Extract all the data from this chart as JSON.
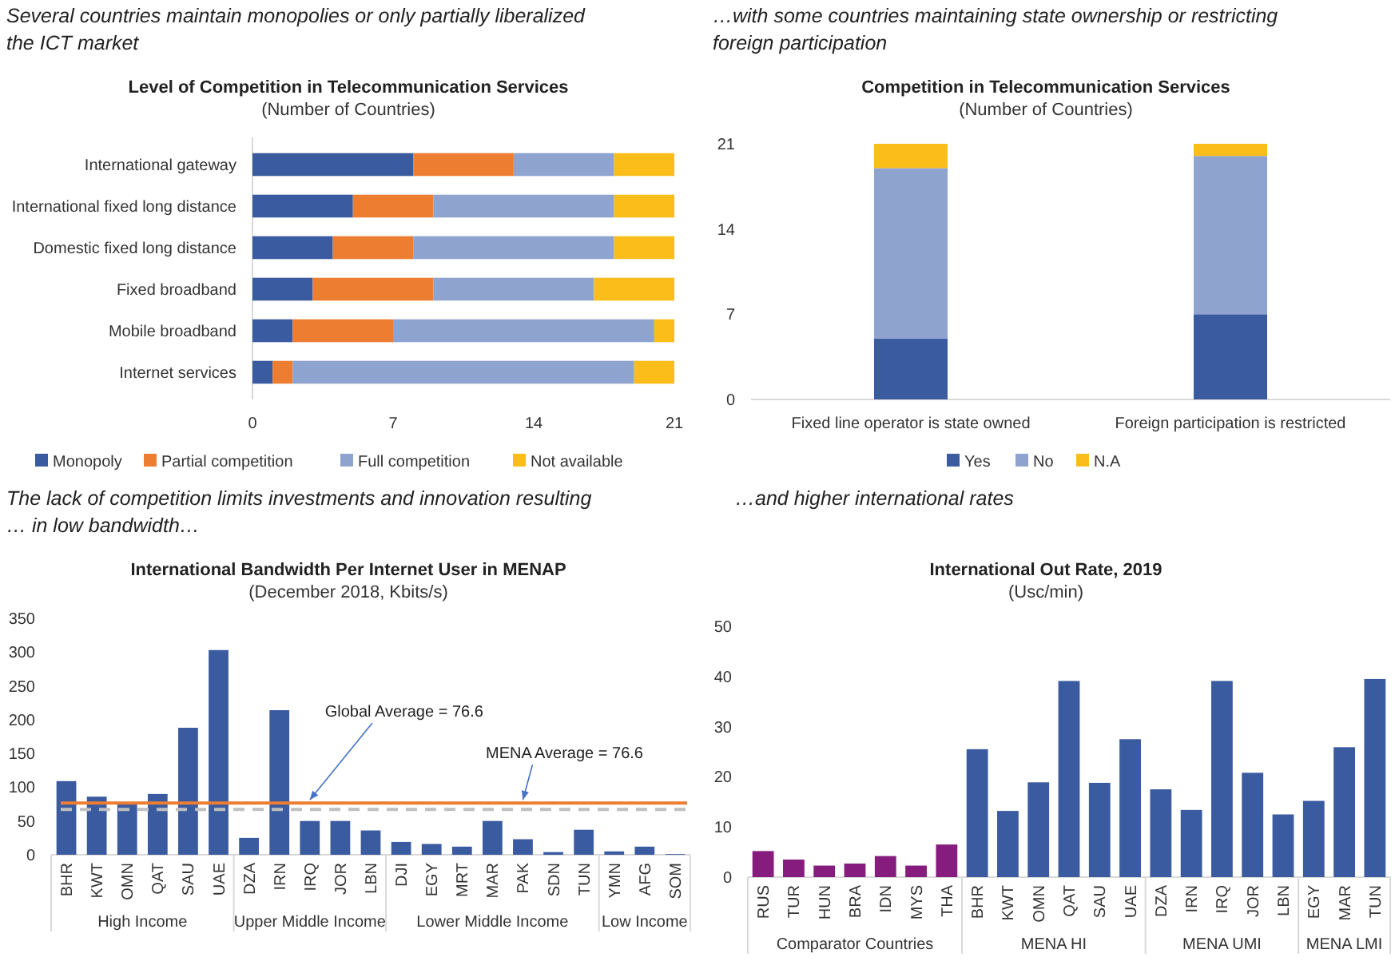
{
  "chart_data": [
    {
      "type": "bar",
      "orientation": "horizontal",
      "stacked": true,
      "title": "Level of Competition in Telecommunication Services",
      "subtitle": "(Number of Countries)",
      "annotations": [
        "Several countries maintain monopolies or only partially liberalized the ICT market"
      ],
      "categories": [
        "International gateway",
        "International fixed long distance",
        "Domestic fixed long distance",
        "Fixed broadband",
        "Mobile broadband",
        "Internet services"
      ],
      "series": [
        {
          "name": "Monopoly",
          "color": "#3a5ba0",
          "values": [
            8,
            5,
            4,
            3,
            2,
            1
          ]
        },
        {
          "name": "Partial competition",
          "color": "#ed7d31",
          "values": [
            5,
            4,
            4,
            6,
            5,
            1
          ]
        },
        {
          "name": "Full competition",
          "color": "#8fa3cf",
          "values": [
            5,
            9,
            10,
            8,
            13,
            17
          ]
        },
        {
          "name": "Not available",
          "color": "#fbbd19",
          "values": [
            3,
            3,
            3,
            4,
            1,
            2
          ]
        }
      ],
      "xlim": [
        0,
        21
      ],
      "xticks": [
        0,
        7,
        14,
        21
      ],
      "grid": false,
      "legend": "bottom"
    },
    {
      "type": "bar",
      "stacked": true,
      "title": "Competition in Telecommunication Services",
      "subtitle": "(Number of Countries)",
      "annotations": [
        "…with some countries maintaining state ownership or restricting foreign participation"
      ],
      "categories": [
        "Fixed line operator is state owned",
        "Foreign participation is restricted"
      ],
      "series": [
        {
          "name": "Yes",
          "color": "#3a5ba0",
          "values": [
            5,
            7
          ]
        },
        {
          "name": "No",
          "color": "#8fa3cf",
          "values": [
            14,
            13
          ]
        },
        {
          "name": "N.A",
          "color": "#fbbd19",
          "values": [
            2,
            1
          ]
        }
      ],
      "ylim": [
        0,
        21
      ],
      "yticks": [
        0,
        7,
        14,
        21
      ],
      "grid": false,
      "legend": "bottom"
    },
    {
      "type": "bar",
      "title": "International Bandwidth Per Internet User in MENAP",
      "subtitle": "(December 2018, Kbits/s)",
      "annotations": [
        "The lack of competition limits investments and innovation resulting … in low bandwidth…",
        {
          "text": "Global Average = 76.6",
          "x": "IRQ",
          "y": 76.6
        },
        {
          "text": "MENA Average = 76.6",
          "x": "PAK",
          "y": 76.6
        },
        "High Income",
        "Upper Middle Income",
        "Lower Middle Income",
        "Low Income"
      ],
      "categories": [
        "BHR",
        "KWT",
        "OMN",
        "QAT",
        "SAU",
        "UAE",
        "DZA",
        "IRN",
        "IRQ",
        "JOR",
        "LBN",
        "DJI",
        "EGY",
        "MRT",
        "MAR",
        "PAK",
        "SDN",
        "TUN",
        "YMN",
        "AFG",
        "SOM"
      ],
      "values": [
        109,
        86,
        76,
        90,
        188,
        303,
        25,
        214,
        50,
        50,
        36,
        19,
        16,
        12,
        50,
        23,
        4,
        37,
        5,
        12,
        1
      ],
      "color": "#3a5ba0",
      "ref_lines": [
        {
          "axis": "y",
          "value": 76.6,
          "color": "#ed7d31",
          "line_style": "solid"
        },
        {
          "axis": "y",
          "value": 67,
          "color": "#bfbfbf",
          "line_style": "dashed"
        }
      ],
      "ylim": [
        0,
        350
      ],
      "yticks": [
        0,
        50,
        100,
        150,
        200,
        250,
        300,
        350
      ],
      "grid": false,
      "legend": false
    },
    {
      "type": "bar",
      "title": "International Out Rate, 2019",
      "subtitle": "(Usc/min)",
      "annotations": [
        "…and higher international rates",
        "Comparator Countries",
        "MENA HI",
        "MENA UMI",
        "MENA LMI"
      ],
      "categories": [
        "RUS",
        "TUR",
        "HUN",
        "BRA",
        "IDN",
        "MYS",
        "THA",
        "BHR",
        "KWT",
        "OMN",
        "QAT",
        "SAU",
        "UAE",
        "DZA",
        "IRN",
        "IRQ",
        "JOR",
        "LBN",
        "EGY",
        "MAR",
        "TUN"
      ],
      "values": [
        5.2,
        3.5,
        2.3,
        2.7,
        4.2,
        2.3,
        6.5,
        25.5,
        13.2,
        18.9,
        39.1,
        18.8,
        27.5,
        17.5,
        13.4,
        39.1,
        20.8,
        12.5,
        15.2,
        25.9,
        39.5
      ],
      "colors": [
        "#861c7e",
        "#861c7e",
        "#861c7e",
        "#861c7e",
        "#861c7e",
        "#861c7e",
        "#861c7e",
        "#3a5ba0",
        "#3a5ba0",
        "#3a5ba0",
        "#3a5ba0",
        "#3a5ba0",
        "#3a5ba0",
        "#3a5ba0",
        "#3a5ba0",
        "#3a5ba0",
        "#3a5ba0",
        "#3a5ba0",
        "#3a5ba0",
        "#3a5ba0",
        "#3a5ba0"
      ],
      "ylim": [
        0,
        50
      ],
      "yticks": [
        0,
        10,
        20,
        30,
        40,
        50
      ],
      "grid": false,
      "legend": false
    }
  ]
}
